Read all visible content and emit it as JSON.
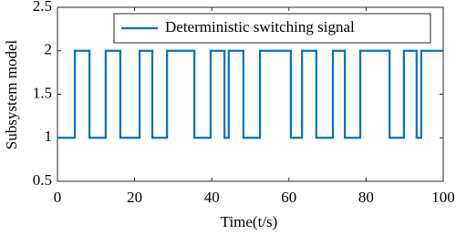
{
  "chart_data": {
    "type": "line",
    "x": [
      0,
      4.5,
      4.5,
      8.3,
      8.3,
      12.5,
      12.5,
      16.3,
      16.3,
      21.3,
      21.3,
      24.6,
      24.6,
      28.4,
      28.4,
      35.5,
      35.5,
      39.7,
      39.7,
      43.3,
      43.3,
      44.4,
      44.4,
      48.2,
      48.2,
      52.5,
      52.5,
      60.5,
      60.5,
      63.4,
      63.4,
      67.1,
      67.1,
      71.4,
      71.4,
      74.5,
      74.5,
      78.5,
      78.5,
      86.1,
      86.1,
      89.8,
      89.8,
      93.1,
      93.1,
      94.3,
      94.3,
      100
    ],
    "series": [
      {
        "name": "Deterministic switching signal",
        "color": "#0072bd",
        "values": [
          1,
          1,
          2,
          2,
          1,
          1,
          2,
          2,
          1,
          1,
          2,
          2,
          1,
          1,
          2,
          2,
          1,
          1,
          2,
          2,
          1,
          1,
          2,
          2,
          1,
          1,
          2,
          2,
          1,
          1,
          2,
          2,
          1,
          1,
          2,
          2,
          1,
          1,
          2,
          2,
          1,
          1,
          2,
          2,
          1,
          1,
          2,
          2
        ]
      }
    ],
    "x_label": "Time(t/s)",
    "y_label": "Subsystem model",
    "xlim": [
      0,
      100
    ],
    "xticks": [
      0,
      20,
      40,
      60,
      80,
      100
    ],
    "ylim": [
      0.5,
      2.5
    ],
    "yticks": [
      0.5,
      1,
      1.5,
      2,
      2.5
    ],
    "legend": "upper right"
  }
}
